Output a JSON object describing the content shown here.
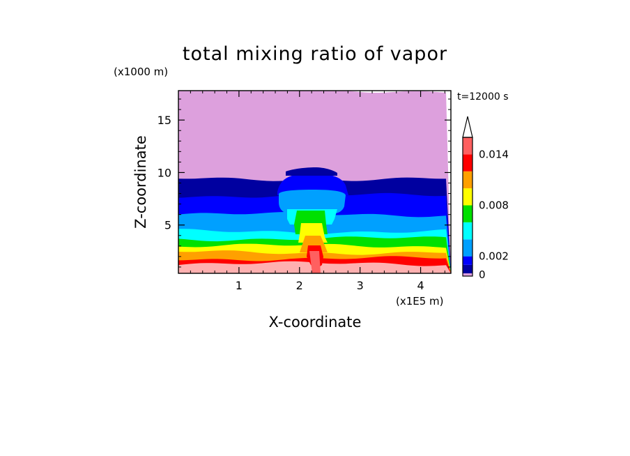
{
  "chart_data": {
    "type": "heatmap",
    "title": "total mixing ratio of vapor",
    "time_label": "t=12000 s",
    "xlabel": "X-coordinate",
    "ylabel": "Z-coordinate",
    "x_unit": "(x1E5 m)",
    "y_unit": "(x1000 m)",
    "xlim": [
      0,
      4.5
    ],
    "ylim": [
      0.4,
      17.8
    ],
    "x_ticks": [
      "1",
      "2",
      "3",
      "4"
    ],
    "x_tick_values": [
      1,
      2,
      3,
      4
    ],
    "y_ticks": [
      "5",
      "10",
      "15"
    ],
    "y_tick_values": [
      5,
      10,
      15
    ],
    "colorbar": {
      "labels": [
        "0",
        "0.002",
        "0.008",
        "0.014"
      ],
      "label_values": [
        0,
        0.002,
        0.008,
        0.014
      ],
      "levels": [
        0,
        0.001,
        0.002,
        0.004,
        0.006,
        0.008,
        0.01,
        0.012,
        0.014,
        0.016
      ],
      "colors": [
        "#dda0dd",
        "#0000a0",
        "#0000ff",
        "#00a0ff",
        "#00ffff",
        "#00e000",
        "#ffff00",
        "#ffa000",
        "#ff0000",
        "#ff6060",
        "#ffb0b0"
      ]
    },
    "layers": [
      {
        "color": "#ffb0b0",
        "z_top": 1.3
      },
      {
        "color": "#ff0000",
        "z_top": 1.8
      },
      {
        "color": "#ffa000",
        "z_top": 2.4
      },
      {
        "color": "#ffff00",
        "z_top": 3.0
      },
      {
        "color": "#00e000",
        "z_top": 3.7
      },
      {
        "color": "#00ffff",
        "z_top": 4.4
      },
      {
        "color": "#00a0ff",
        "z_top": 6.0
      },
      {
        "color": "#0000ff",
        "z_top": 7.8
      },
      {
        "color": "#0000a0",
        "z_top": 9.4
      },
      {
        "color": "#dda0dd",
        "z_top": 17.8
      }
    ]
  }
}
